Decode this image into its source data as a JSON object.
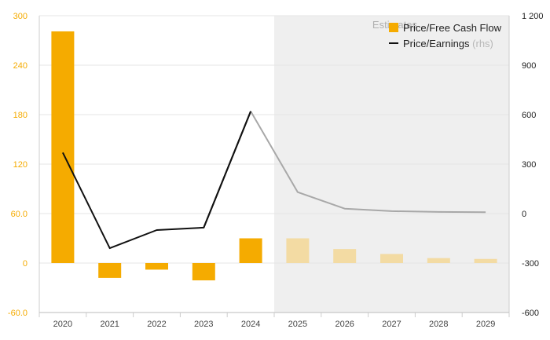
{
  "chart_data": {
    "type": "bar",
    "categories": [
      "2020",
      "2021",
      "2022",
      "2023",
      "2024",
      "2025",
      "2026",
      "2027",
      "2028",
      "2029"
    ],
    "estimates_from_index": 5,
    "estimates_label": "Estimates",
    "series": [
      {
        "name": "Price/Free Cash Flow",
        "type": "bar",
        "axis": "left",
        "color": "#f5ab00",
        "estimate_color": "#f3dba3",
        "values": [
          281,
          -18,
          -8,
          -21,
          30,
          30,
          17,
          11,
          6,
          5
        ]
      },
      {
        "name": "Price/Earnings",
        "rhs_suffix": "(rhs)",
        "type": "line",
        "axis": "right",
        "color": "#111111",
        "estimate_color": "#a8a8a8",
        "values": [
          370,
          -210,
          -100,
          -85,
          620,
          130,
          30,
          15,
          10,
          8
        ]
      }
    ],
    "y_left": {
      "ticks": [
        "300",
        "240",
        "180",
        "120",
        "60.0",
        "0",
        "-60.0"
      ],
      "min": -60,
      "max": 300
    },
    "y_right": {
      "ticks": [
        "1 200",
        "900",
        "600",
        "300",
        "0",
        "-300",
        "-600"
      ],
      "min": -600,
      "max": 1200
    },
    "grid": true,
    "legend_position": "top-right"
  }
}
